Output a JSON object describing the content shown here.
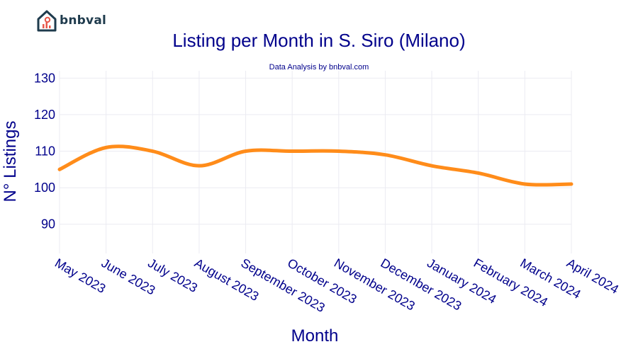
{
  "brand": {
    "name": "bnbval",
    "icon": "house-chart-icon"
  },
  "chart_data": {
    "type": "line",
    "title": "Listing per Month in S. Siro (Milano)",
    "subtitle": "Data Analysis by bnbval.com",
    "xlabel": "Month",
    "ylabel": "N° Listings",
    "categories": [
      "May 2023",
      "June 2023",
      "July 2023",
      "August 2023",
      "September 2023",
      "October 2023",
      "November 2023",
      "December 2023",
      "January 2024",
      "February 2024",
      "March 2024",
      "April 2024"
    ],
    "series": [
      {
        "name": "Listings",
        "color": "#ff8c1a",
        "values": [
          105,
          111,
          110,
          106,
          110,
          110,
          110,
          109,
          106,
          104,
          101,
          101
        ]
      }
    ],
    "ylim": [
      82,
      132
    ],
    "yticks": [
      90,
      100,
      110,
      120,
      130
    ],
    "grid": true
  }
}
